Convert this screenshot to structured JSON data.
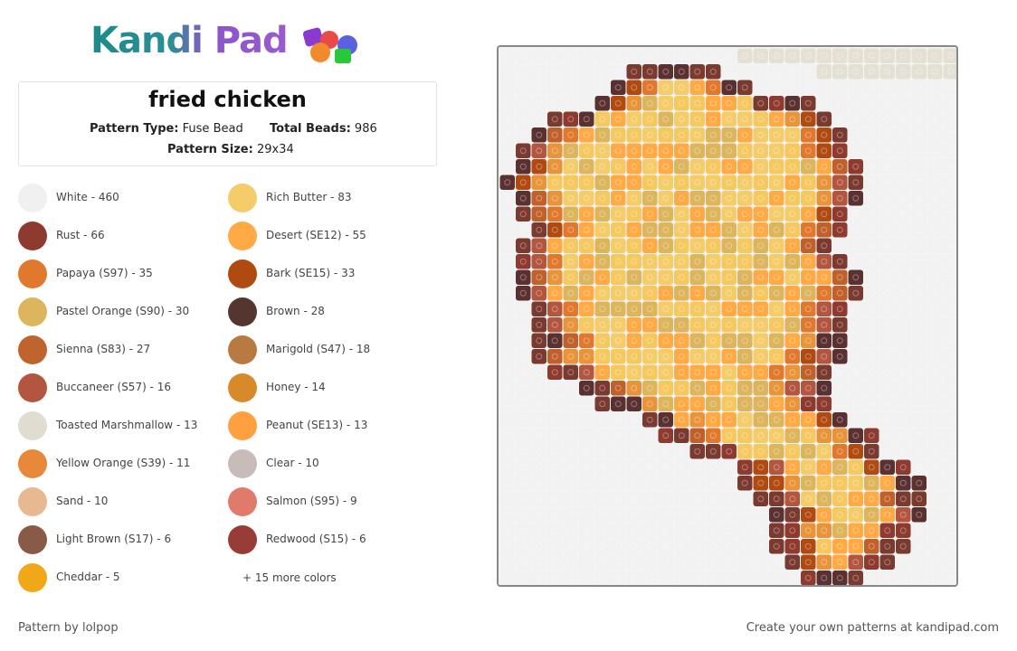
{
  "logo": "Kandi Pad",
  "title": "fried chicken",
  "stats": [
    {
      "label": "Pattern Type:",
      "value": "Fuse Bead"
    },
    {
      "label": "Total Beads:",
      "value": "986"
    },
    {
      "label": "Pattern Size:",
      "value": "29x34"
    }
  ],
  "colors": [
    {
      "label": "White - 460",
      "color": "#f0f0f0"
    },
    {
      "label": "Rich Butter - 83",
      "color": "#f5cc6a"
    },
    {
      "label": "Rust - 66",
      "color": "#8e3a2e"
    },
    {
      "label": "Desert (SE12) - 55",
      "color": "#ffaa44"
    },
    {
      "label": "Papaya (S97) - 35",
      "color": "#e0782e"
    },
    {
      "label": "Bark (SE15) - 33",
      "color": "#b04a10"
    },
    {
      "label": "Pastel Orange (S90) - 30",
      "color": "#dcb55c"
    },
    {
      "label": "Brown - 28",
      "color": "#553530"
    },
    {
      "label": "Sienna (S83) - 27",
      "color": "#c0642f"
    },
    {
      "label": "Marigold (S47) - 18",
      "color": "#b87a40"
    },
    {
      "label": "Buccaneer (S57) - 16",
      "color": "#b25640"
    },
    {
      "label": "Honey - 14",
      "color": "#d88a2a"
    },
    {
      "label": "Toasted Marshmallow - 13",
      "color": "#e0dcd0"
    },
    {
      "label": "Peanut (SE13) - 13",
      "color": "#ffa040"
    },
    {
      "label": "Yellow Orange (S39) - 11",
      "color": "#e8883a"
    },
    {
      "label": "Clear - 10",
      "color": "#c8bcb8"
    },
    {
      "label": "Sand - 10",
      "color": "#e8b890"
    },
    {
      "label": "Salmon (S95) - 9",
      "color": "#e07a6a"
    },
    {
      "label": "Light Brown (S17) - 6",
      "color": "#8a5a48"
    },
    {
      "label": "Redwood (S15) - 6",
      "color": "#983c38"
    },
    {
      "label": "Cheddar - 5",
      "color": "#f0a818"
    }
  ],
  "more_colors": "+ 15 more colors",
  "footer_left": "Pattern by lolpop",
  "footer_right": "Create your own patterns at kandipad.com"
}
